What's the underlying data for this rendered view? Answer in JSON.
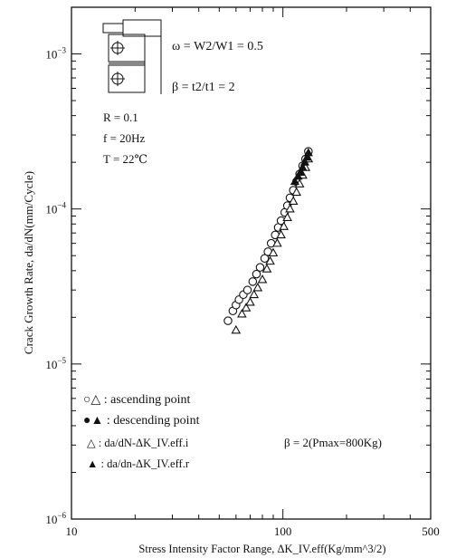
{
  "chart_data": {
    "type": "scatter",
    "title": "",
    "xlabel": "Stress Intensity Factor Range, ΔK_IV.eff(Kg/mm^3/2)",
    "ylabel": "Crack Growth Rate, da/dN(mm/Cycle)",
    "x_scale": "log",
    "y_scale": "log",
    "xlim": [
      10,
      500
    ],
    "ylim": [
      1e-06,
      0.002
    ],
    "x_ticks": [
      "10",
      "100",
      "500"
    ],
    "y_ticks": [
      "10^-6",
      "10^-5",
      "10^-4",
      "10^-3"
    ],
    "grid": false,
    "legend": [
      "○△ : ascending point",
      "●▲ : descending point",
      "△ : da/dN-ΔK_IV.eff.i",
      "▲ : da/dn-ΔK_IV.eff.r"
    ],
    "conditions": {
      "omega": "ω = W2/W1 = 0.5",
      "beta": "β = t2/t1 = 2",
      "R": "R = 0.1",
      "f": "f = 20Hz",
      "T": "T = 22℃"
    },
    "annotation": "β = 2(Pmax=800Kg)",
    "series": [
      {
        "name": "ascending circles",
        "marker": "open-circle",
        "x": [
          55,
          58,
          60,
          62,
          65,
          68,
          72,
          75,
          78,
          82,
          85,
          88,
          92,
          95,
          98,
          102,
          105,
          108,
          112,
          116,
          120,
          124,
          128,
          132
        ],
        "y": [
          1.9e-05,
          2.2e-05,
          2.4e-05,
          2.6e-05,
          2.8e-05,
          3e-05,
          3.4e-05,
          3.8e-05,
          4.2e-05,
          4.8e-05,
          5.3e-05,
          6e-05,
          6.8e-05,
          7.6e-05,
          8.4e-05,
          9.5e-05,
          0.000105,
          0.000118,
          0.000132,
          0.00015,
          0.000168,
          0.00019,
          0.00021,
          0.000235
        ]
      },
      {
        "name": "ascending triangles",
        "marker": "open-triangle",
        "x": [
          60,
          64,
          67,
          70,
          73,
          76,
          80,
          84,
          87,
          90,
          94,
          98,
          101,
          105,
          108,
          112,
          116,
          120,
          124,
          128,
          132
        ],
        "y": [
          1.65e-05,
          2.1e-05,
          2.3e-05,
          2.5e-05,
          2.8e-05,
          3.1e-05,
          3.5e-05,
          4.1e-05,
          4.6e-05,
          5.2e-05,
          6e-05,
          6.8e-05,
          7.7e-05,
          8.8e-05,
          0.0001,
          0.000112,
          0.000128,
          0.000145,
          0.000165,
          0.000185,
          0.00021
        ]
      },
      {
        "name": "descending triangles",
        "marker": "filled-triangle",
        "x": [
          114,
          118,
          121,
          124,
          127,
          130,
          132
        ],
        "y": [
          0.00015,
          0.000162,
          0.000172,
          0.000185,
          0.0002,
          0.000215,
          0.00023
        ]
      }
    ]
  }
}
